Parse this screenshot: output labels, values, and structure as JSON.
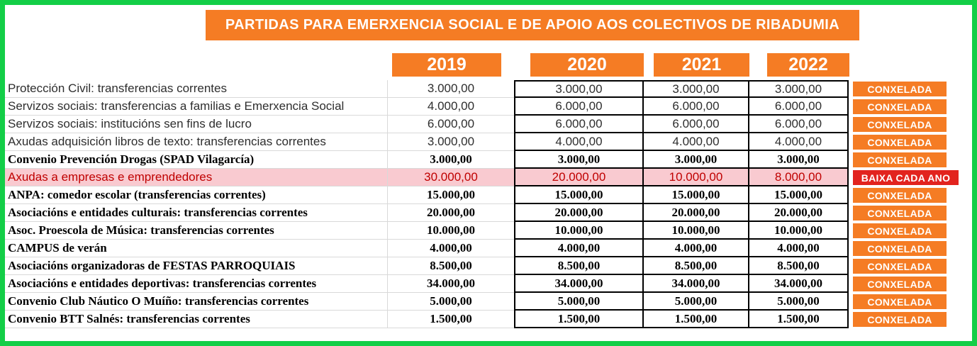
{
  "title": "PARTIDAS PARA EMERXENCIA SOCIAL E DE APOIO AOS COLECTIVOS DE RIBADUMIA",
  "years": [
    "2019",
    "2020",
    "2021",
    "2022"
  ],
  "rows": [
    {
      "label": "Protección Civil: transferencias correntes",
      "values": [
        "3.000,00",
        "3.000,00",
        "3.000,00",
        "3.000,00"
      ],
      "status": "CONXELADA",
      "emphasis": "sans",
      "highlight": false
    },
    {
      "label": "Servizos sociais: transferencias a familias e Emerxencia Social",
      "values": [
        "4.000,00",
        "6.000,00",
        "6.000,00",
        "6.000,00"
      ],
      "status": "CONXELADA",
      "emphasis": "sans",
      "highlight": false
    },
    {
      "label": "Servizos sociais: institucións sen fins de lucro",
      "values": [
        "6.000,00",
        "6.000,00",
        "6.000,00",
        "6.000,00"
      ],
      "status": "CONXELADA",
      "emphasis": "sans",
      "highlight": false
    },
    {
      "label": "Axudas adquisición libros de texto: transferencias correntes",
      "values": [
        "3.000,00",
        "4.000,00",
        "4.000,00",
        "4.000,00"
      ],
      "status": "CONXELADA",
      "emphasis": "sans",
      "highlight": false
    },
    {
      "label": "Convenio Prevención Drogas (SPAD Vilagarcía)",
      "values": [
        "3.000,00",
        "3.000,00",
        "3.000,00",
        "3.000,00"
      ],
      "status": "CONXELADA",
      "emphasis": "serif",
      "highlight": false
    },
    {
      "label": "Axudas a empresas e emprendedores",
      "values": [
        "30.000,00",
        "20.000,00",
        "10.000,00",
        "8.000,00"
      ],
      "status": "BAIXA CADA ANO",
      "emphasis": "sans",
      "highlight": true
    },
    {
      "label": "ANPA: comedor escolar (transferencias correntes)",
      "values": [
        "15.000,00",
        "15.000,00",
        "15.000,00",
        "15.000,00"
      ],
      "status": "CONXELADA",
      "emphasis": "serif",
      "highlight": false
    },
    {
      "label": "Asociacións e entidades culturais: transferencias correntes",
      "values": [
        "20.000,00",
        "20.000,00",
        "20.000,00",
        "20.000,00"
      ],
      "status": "CONXELADA",
      "emphasis": "serif",
      "highlight": false
    },
    {
      "label": "Asoc. Proescola de Música: transferencias correntes",
      "values": [
        "10.000,00",
        "10.000,00",
        "10.000,00",
        "10.000,00"
      ],
      "status": "CONXELADA",
      "emphasis": "serif",
      "highlight": false
    },
    {
      "label": "CAMPUS de verán",
      "values": [
        "4.000,00",
        "4.000,00",
        "4.000,00",
        "4.000,00"
      ],
      "status": "CONXELADA",
      "emphasis": "serif",
      "highlight": false
    },
    {
      "label": "Asociacións organizadoras de FESTAS PARROQUIAIS",
      "values": [
        "8.500,00",
        "8.500,00",
        "8.500,00",
        "8.500,00"
      ],
      "status": "CONXELADA",
      "emphasis": "serif",
      "highlight": false
    },
    {
      "label": "Asociacións e entidades deportivas: transferencias correntes",
      "values": [
        "34.000,00",
        "34.000,00",
        "34.000,00",
        "34.000,00"
      ],
      "status": "CONXELADA",
      "emphasis": "serif",
      "highlight": false
    },
    {
      "label": "Convenio Club Náutico O Muíño: transferencias correntes",
      "values": [
        "5.000,00",
        "5.000,00",
        "5.000,00",
        "5.000,00"
      ],
      "status": "CONXELADA",
      "emphasis": "serif",
      "highlight": false
    },
    {
      "label": "Convenio BTT Salnés: transferencias correntes",
      "values": [
        "1.500,00",
        "1.500,00",
        "1.500,00",
        "1.500,00"
      ],
      "status": "CONXELADA",
      "emphasis": "serif",
      "highlight": false
    }
  ],
  "colors": {
    "accent_orange": "#F57C24",
    "alert_red": "#E2231E",
    "highlight_pink": "#F9CAD0",
    "highlight_text_red": "#C00000",
    "frame_green": "#13CE47"
  }
}
